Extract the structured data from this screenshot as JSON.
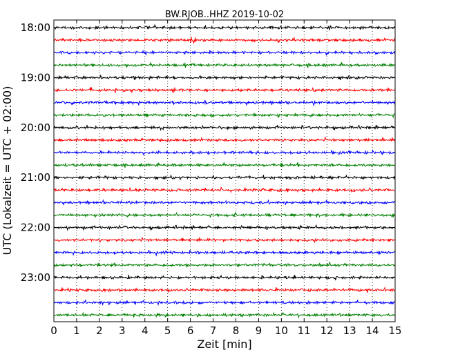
{
  "chart_data": {
    "type": "line",
    "title": "BW.RJOB..HHZ 2019-10-02",
    "xlabel": "Zeit  [min]",
    "ylabel": "UTC (Lokalzeit = UTC + 02:00)",
    "xlim": [
      0,
      15
    ],
    "x_ticks": [
      "0",
      "1",
      "2",
      "3",
      "4",
      "5",
      "6",
      "7",
      "8",
      "9",
      "10",
      "11",
      "12",
      "13",
      "14",
      "15"
    ],
    "y_ticks": [
      "18:00",
      "19:00",
      "20:00",
      "21:00",
      "22:00",
      "23:00"
    ],
    "grid": "vertical dotted lines at each minute",
    "trace_colors": [
      "#000000",
      "#ff0000",
      "#0000ff",
      "#008000"
    ],
    "traces": [
      {
        "start": "18:00",
        "color": "#000000"
      },
      {
        "start": "18:15",
        "color": "#ff0000",
        "event_minute": 6.1
      },
      {
        "start": "18:30",
        "color": "#0000ff"
      },
      {
        "start": "18:45",
        "color": "#008000"
      },
      {
        "start": "19:00",
        "color": "#000000"
      },
      {
        "start": "19:15",
        "color": "#ff0000"
      },
      {
        "start": "19:30",
        "color": "#0000ff"
      },
      {
        "start": "19:45",
        "color": "#008000"
      },
      {
        "start": "20:00",
        "color": "#000000"
      },
      {
        "start": "20:15",
        "color": "#ff0000"
      },
      {
        "start": "20:30",
        "color": "#0000ff"
      },
      {
        "start": "20:45",
        "color": "#008000"
      },
      {
        "start": "21:00",
        "color": "#000000"
      },
      {
        "start": "21:15",
        "color": "#ff0000"
      },
      {
        "start": "21:30",
        "color": "#0000ff"
      },
      {
        "start": "21:45",
        "color": "#008000"
      },
      {
        "start": "22:00",
        "color": "#000000"
      },
      {
        "start": "22:15",
        "color": "#ff0000"
      },
      {
        "start": "22:30",
        "color": "#0000ff"
      },
      {
        "start": "22:45",
        "color": "#008000"
      },
      {
        "start": "23:00",
        "color": "#000000"
      },
      {
        "start": "23:15",
        "color": "#ff0000"
      },
      {
        "start": "23:30",
        "color": "#0000ff"
      },
      {
        "start": "23:45",
        "color": "#008000"
      }
    ]
  }
}
